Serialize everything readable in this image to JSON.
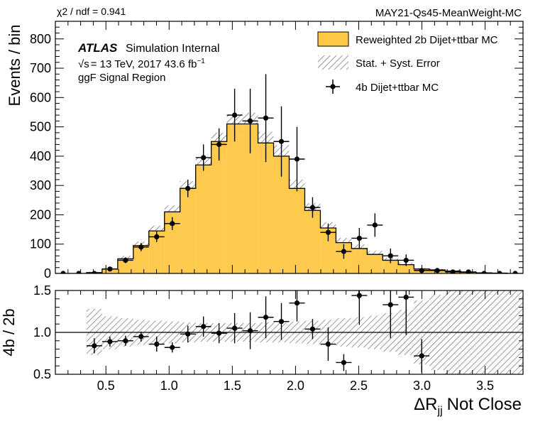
{
  "header": {
    "chi2": "χ2 / ndf = 0.941",
    "tag": "MAY21-Qs45-MeanWeight-MC"
  },
  "annotations": {
    "atlas": "ATLAS",
    "atlas_suffix": "Simulation Internal",
    "energy_sqrt": "√s",
    "energy_text": "= 13 TeV, 2017 43.6 fb",
    "energy_sup": "−1",
    "region": "ggF Signal Region"
  },
  "chart_data": [
    {
      "panel": "main",
      "type": "histogram",
      "xlabel": "ΔR",
      "xlabel_sub": "jj",
      "xlabel_suffix": "Not Close",
      "ylabel": "Events / bin",
      "xlim": [
        0.1,
        3.8
      ],
      "ylim": [
        0,
        860
      ],
      "y_ticks": [
        0,
        100,
        200,
        300,
        400,
        500,
        600,
        700,
        800
      ],
      "x_ticks": [
        0.5,
        1.0,
        1.5,
        2.0,
        2.5,
        3.0,
        3.5
      ],
      "x_tick_labels": [
        "0.5",
        "1.0",
        "1.5",
        "2.0",
        "2.5",
        "3.0",
        "3.5"
      ],
      "bin_edges": [
        0.1,
        0.2233,
        0.3467,
        0.47,
        0.5933,
        0.7167,
        0.84,
        0.9633,
        1.0867,
        1.21,
        1.3333,
        1.4567,
        1.58,
        1.7033,
        1.8267,
        1.95,
        2.0733,
        2.1967,
        2.32,
        2.4433,
        2.5667,
        2.69,
        2.8133,
        2.9367,
        3.06,
        3.1833,
        3.3067,
        3.43,
        3.5533,
        3.6767,
        3.8
      ],
      "legend": [
        {
          "label": "Reweighted 2b Dijet+ttbar MC",
          "kind": "fill",
          "color": "#ffc845"
        },
        {
          "label": "Stat. + Syst. Error",
          "kind": "hatch"
        },
        {
          "label": "4b Dijet+ttbar MC",
          "kind": "marker"
        }
      ],
      "series": [
        {
          "name": "Reweighted 2b Dijet+ttbar MC",
          "kind": "filled_step",
          "color": "#ffc845",
          "values": [
            0,
            0,
            3,
            15,
            50,
            95,
            145,
            210,
            290,
            370,
            450,
            510,
            510,
            445,
            400,
            290,
            215,
            155,
            105,
            85,
            65,
            45,
            30,
            15,
            12,
            8,
            4,
            2,
            1,
            0
          ],
          "err": [
            0,
            0,
            3,
            6,
            10,
            14,
            18,
            22,
            25,
            27,
            30,
            33,
            38,
            38,
            38,
            30,
            25,
            20,
            16,
            14,
            12,
            9,
            7,
            4,
            4,
            4,
            3,
            2,
            1,
            0
          ]
        },
        {
          "name": "4b Dijet+ttbar MC",
          "kind": "points",
          "color": "#000000",
          "values": [
            0,
            0,
            0,
            15,
            45,
            90,
            125,
            170,
            290,
            395,
            440,
            540,
            520,
            530,
            450,
            390,
            225,
            140,
            75,
            120,
            165,
            60,
            45,
            10,
            10,
            5,
            5,
            0,
            0,
            0
          ],
          "err": [
            0,
            0,
            0,
            6,
            10,
            14,
            18,
            22,
            30,
            45,
            55,
            90,
            110,
            150,
            120,
            110,
            35,
            30,
            25,
            35,
            40,
            25,
            20,
            6,
            5,
            3,
            3,
            0,
            0,
            0
          ]
        }
      ]
    },
    {
      "panel": "ratio",
      "type": "ratio",
      "ylabel": "4b / 2b",
      "xlim": [
        0.1,
        3.8
      ],
      "ylim": [
        0.5,
        1.5
      ],
      "y_ticks": [
        0.5,
        1.0,
        1.5
      ],
      "y_tick_labels": [
        "0.5",
        "1.0",
        "1.5"
      ],
      "x_ticks": [
        0.5,
        1.0,
        1.5,
        2.0,
        2.5,
        3.0,
        3.5
      ],
      "x_tick_labels": [
        "0.5",
        "1.0",
        "1.5",
        "2.0",
        "2.5",
        "3.0",
        "3.5"
      ],
      "reference_line": 1.0,
      "band": [
        {
          "x": [
            0.3467,
            0.47
          ],
          "lo": 0.73,
          "hi": 1.28
        },
        {
          "x": [
            0.47,
            0.5933
          ],
          "lo": 0.8,
          "hi": 1.19
        },
        {
          "x": [
            0.5933,
            0.7167
          ],
          "lo": 0.83,
          "hi": 1.17
        },
        {
          "x": [
            0.7167,
            0.84
          ],
          "lo": 0.85,
          "hi": 1.15
        },
        {
          "x": [
            0.84,
            0.9633
          ],
          "lo": 0.86,
          "hi": 1.14
        },
        {
          "x": [
            0.9633,
            1.0867
          ],
          "lo": 0.87,
          "hi": 1.13
        },
        {
          "x": [
            1.0867,
            1.21
          ],
          "lo": 0.88,
          "hi": 1.12
        },
        {
          "x": [
            1.21,
            1.3333
          ],
          "lo": 0.89,
          "hi": 1.11
        },
        {
          "x": [
            1.3333,
            1.4567
          ],
          "lo": 0.89,
          "hi": 1.11
        },
        {
          "x": [
            1.4567,
            1.58
          ],
          "lo": 0.89,
          "hi": 1.11
        },
        {
          "x": [
            1.58,
            1.7033
          ],
          "lo": 0.89,
          "hi": 1.11
        },
        {
          "x": [
            1.7033,
            1.8267
          ],
          "lo": 0.88,
          "hi": 1.12
        },
        {
          "x": [
            1.8267,
            1.95
          ],
          "lo": 0.88,
          "hi": 1.12
        },
        {
          "x": [
            1.95,
            2.0733
          ],
          "lo": 0.87,
          "hi": 1.13
        },
        {
          "x": [
            2.0733,
            2.1967
          ],
          "lo": 0.86,
          "hi": 1.14
        },
        {
          "x": [
            2.1967,
            2.32
          ],
          "lo": 0.85,
          "hi": 1.15
        },
        {
          "x": [
            2.32,
            2.4433
          ],
          "lo": 0.83,
          "hi": 1.17
        },
        {
          "x": [
            2.4433,
            2.5667
          ],
          "lo": 0.82,
          "hi": 1.18
        },
        {
          "x": [
            2.5667,
            2.69
          ],
          "lo": 0.8,
          "hi": 1.2
        },
        {
          "x": [
            2.69,
            2.8133
          ],
          "lo": 0.77,
          "hi": 1.23
        },
        {
          "x": [
            2.8133,
            2.9367
          ],
          "lo": 0.73,
          "hi": 1.27
        },
        {
          "x": [
            2.9367,
            3.06
          ],
          "lo": 0.62,
          "hi": 1.38
        },
        {
          "x": [
            3.06,
            3.1833
          ],
          "lo": 0.55,
          "hi": 1.45
        },
        {
          "x": [
            3.1833,
            3.3067
          ],
          "lo": 0.5,
          "hi": 1.5
        },
        {
          "x": [
            3.3067,
            3.43
          ],
          "lo": 0.5,
          "hi": 1.5
        },
        {
          "x": [
            3.43,
            3.5533
          ],
          "lo": 0.5,
          "hi": 1.5
        },
        {
          "x": [
            3.5533,
            3.6767
          ],
          "lo": 0.5,
          "hi": 1.5
        },
        {
          "x": [
            3.6767,
            3.8
          ],
          "lo": 0.5,
          "hi": 1.5
        }
      ],
      "points": {
        "x": [
          0.4083,
          0.5317,
          0.655,
          0.7783,
          0.9017,
          1.025,
          1.1483,
          1.2717,
          1.395,
          1.5183,
          1.6417,
          1.765,
          1.8883,
          2.0117,
          2.135,
          2.2583,
          2.3817,
          2.505,
          2.7517,
          2.875,
          2.9983
        ],
        "y": [
          0.84,
          0.89,
          0.9,
          0.95,
          0.86,
          0.82,
          0.98,
          1.07,
          0.99,
          1.05,
          1.02,
          1.18,
          1.13,
          1.35,
          1.04,
          0.86,
          0.64,
          1.44,
          1.33,
          1.42,
          0.72
        ],
        "err": [
          0.09,
          0.06,
          0.06,
          0.06,
          0.09,
          0.06,
          0.1,
          0.12,
          0.12,
          0.18,
          0.22,
          0.25,
          0.22,
          0.22,
          0.12,
          0.2,
          0.1,
          0.35,
          0.4,
          0.45,
          0.2
        ]
      }
    }
  ]
}
